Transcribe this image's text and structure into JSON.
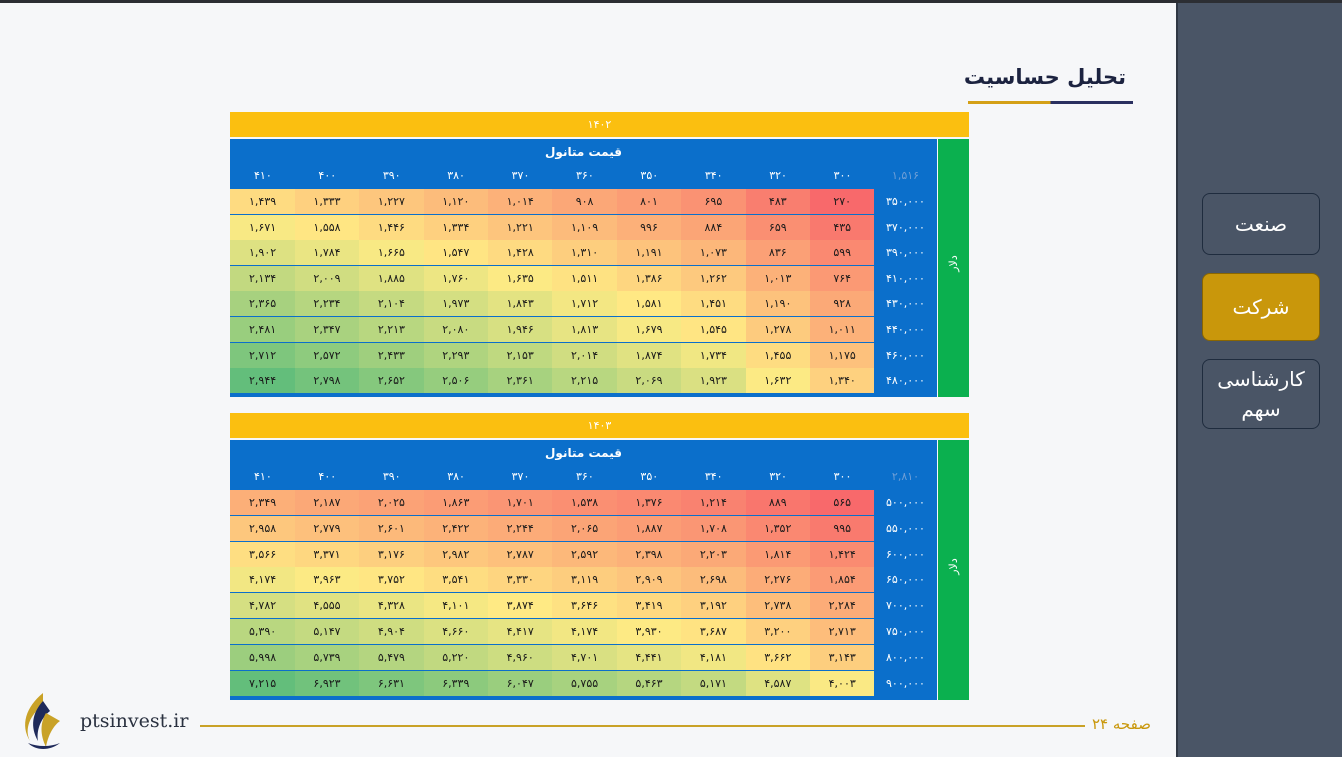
{
  "page": {
    "title": "تحلیل حساسیت",
    "footer_page": "صفحه ۲۴",
    "website": "ptsinvest.ir"
  },
  "sidebar": {
    "items": [
      {
        "label": "صنعت",
        "active": false
      },
      {
        "label": "شرکت",
        "active": true
      },
      {
        "label": "کارشناسی سهم",
        "active": false
      }
    ]
  },
  "colors": {
    "year_bar": "#fbbf10",
    "header_blue": "#0b6fcb",
    "side_green": "#0bb04f",
    "active_button": "#c9970b",
    "heat_low": "#f8696b",
    "heat_mid": "#ffeb84",
    "heat_high": "#63be7b"
  },
  "tables": [
    {
      "year": "۱۴۰۲",
      "col_title": "قیمت متانول",
      "row_title": "دلار",
      "corner": "۱,۵۱۶",
      "columns": [
        "۳۰۰",
        "۳۲۰",
        "۳۴۰",
        "۳۵۰",
        "۳۶۰",
        "۳۷۰",
        "۳۸۰",
        "۳۹۰",
        "۴۰۰",
        "۴۱۰"
      ],
      "rows": [
        {
          "label": "۳۵۰,۰۰۰",
          "values": [
            "۲۷۰",
            "۴۸۳",
            "۶۹۵",
            "۸۰۱",
            "۹۰۸",
            "۱,۰۱۴",
            "۱,۱۲۰",
            "۱,۲۲۷",
            "۱,۳۳۳",
            "۱,۴۳۹"
          ]
        },
        {
          "label": "۳۷۰,۰۰۰",
          "values": [
            "۴۳۵",
            "۶۵۹",
            "۸۸۴",
            "۹۹۶",
            "۱,۱۰۹",
            "۱,۲۲۱",
            "۱,۳۳۴",
            "۱,۴۴۶",
            "۱,۵۵۸",
            "۱,۶۷۱"
          ]
        },
        {
          "label": "۳۹۰,۰۰۰",
          "values": [
            "۵۹۹",
            "۸۳۶",
            "۱,۰۷۳",
            "۱,۱۹۱",
            "۱,۳۱۰",
            "۱,۴۲۸",
            "۱,۵۴۷",
            "۱,۶۶۵",
            "۱,۷۸۴",
            "۱,۹۰۲"
          ]
        },
        {
          "label": "۴۱۰,۰۰۰",
          "values": [
            "۷۶۴",
            "۱,۰۱۳",
            "۱,۲۶۲",
            "۱,۳۸۶",
            "۱,۵۱۱",
            "۱,۶۳۵",
            "۱,۷۶۰",
            "۱,۸۸۵",
            "۲,۰۰۹",
            "۲,۱۳۴"
          ]
        },
        {
          "label": "۴۳۰,۰۰۰",
          "values": [
            "۹۲۸",
            "۱,۱۹۰",
            "۱,۴۵۱",
            "۱,۵۸۱",
            "۱,۷۱۲",
            "۱,۸۴۳",
            "۱,۹۷۳",
            "۲,۱۰۴",
            "۲,۲۳۴",
            "۲,۳۶۵"
          ]
        },
        {
          "label": "۴۴۰,۰۰۰",
          "values": [
            "۱,۰۱۱",
            "۱,۲۷۸",
            "۱,۵۴۵",
            "۱,۶۷۹",
            "۱,۸۱۳",
            "۱,۹۴۶",
            "۲,۰۸۰",
            "۲,۲۱۳",
            "۲,۳۴۷",
            "۲,۴۸۱"
          ]
        },
        {
          "label": "۴۶۰,۰۰۰",
          "values": [
            "۱,۱۷۵",
            "۱,۴۵۵",
            "۱,۷۳۴",
            "۱,۸۷۴",
            "۲,۰۱۴",
            "۲,۱۵۳",
            "۲,۲۹۳",
            "۲,۴۳۳",
            "۲,۵۷۲",
            "۲,۷۱۲"
          ]
        },
        {
          "label": "۴۸۰,۰۰۰",
          "values": [
            "۱,۳۴۰",
            "۱,۶۳۲",
            "۱,۹۲۳",
            "۲,۰۶۹",
            "۲,۲۱۵",
            "۲,۳۶۱",
            "۲,۵۰۶",
            "۲,۶۵۲",
            "۲,۷۹۸",
            "۲,۹۴۴"
          ]
        }
      ]
    },
    {
      "year": "۱۴۰۳",
      "col_title": "قیمت متانول",
      "row_title": "دلار",
      "corner": "۲,۸۱۰",
      "columns": [
        "۳۰۰",
        "۳۲۰",
        "۳۴۰",
        "۳۵۰",
        "۳۶۰",
        "۳۷۰",
        "۳۸۰",
        "۳۹۰",
        "۴۰۰",
        "۴۱۰"
      ],
      "rows": [
        {
          "label": "۵۰۰,۰۰۰",
          "values": [
            "۵۶۵",
            "۸۸۹",
            "۱,۲۱۴",
            "۱,۳۷۶",
            "۱,۵۳۸",
            "۱,۷۰۱",
            "۱,۸۶۳",
            "۲,۰۲۵",
            "۲,۱۸۷",
            "۲,۳۴۹"
          ]
        },
        {
          "label": "۵۵۰,۰۰۰",
          "values": [
            "۹۹۵",
            "۱,۳۵۲",
            "۱,۷۰۸",
            "۱,۸۸۷",
            "۲,۰۶۵",
            "۲,۲۴۴",
            "۲,۴۲۲",
            "۲,۶۰۱",
            "۲,۷۷۹",
            "۲,۹۵۸"
          ]
        },
        {
          "label": "۶۰۰,۰۰۰",
          "values": [
            "۱,۴۲۴",
            "۱,۸۱۴",
            "۲,۲۰۳",
            "۲,۳۹۸",
            "۲,۵۹۲",
            "۲,۷۸۷",
            "۲,۹۸۲",
            "۳,۱۷۶",
            "۳,۳۷۱",
            "۳,۵۶۶"
          ]
        },
        {
          "label": "۶۵۰,۰۰۰",
          "values": [
            "۱,۸۵۴",
            "۲,۲۷۶",
            "۲,۶۹۸",
            "۲,۹۰۹",
            "۳,۱۱۹",
            "۳,۳۳۰",
            "۳,۵۴۱",
            "۳,۷۵۲",
            "۳,۹۶۳",
            "۴,۱۷۴"
          ]
        },
        {
          "label": "۷۰۰,۰۰۰",
          "values": [
            "۲,۲۸۴",
            "۲,۷۳۸",
            "۳,۱۹۲",
            "۳,۴۱۹",
            "۳,۶۴۶",
            "۳,۸۷۴",
            "۴,۱۰۱",
            "۴,۳۲۸",
            "۴,۵۵۵",
            "۴,۷۸۲"
          ]
        },
        {
          "label": "۷۵۰,۰۰۰",
          "values": [
            "۲,۷۱۳",
            "۳,۲۰۰",
            "۳,۶۸۷",
            "۳,۹۳۰",
            "۴,۱۷۴",
            "۴,۴۱۷",
            "۴,۶۶۰",
            "۴,۹۰۴",
            "۵,۱۴۷",
            "۵,۳۹۰"
          ]
        },
        {
          "label": "۸۰۰,۰۰۰",
          "values": [
            "۳,۱۴۳",
            "۳,۶۶۲",
            "۴,۱۸۱",
            "۴,۴۴۱",
            "۴,۷۰۱",
            "۴,۹۶۰",
            "۵,۲۲۰",
            "۵,۴۷۹",
            "۵,۷۳۹",
            "۵,۹۹۸"
          ]
        },
        {
          "label": "۹۰۰,۰۰۰",
          "values": [
            "۴,۰۰۳",
            "۴,۵۸۷",
            "۵,۱۷۱",
            "۵,۴۶۳",
            "۵,۷۵۵",
            "۶,۰۴۷",
            "۶,۳۳۹",
            "۶,۶۳۱",
            "۶,۹۲۳",
            "۷,۲۱۵"
          ]
        }
      ]
    }
  ]
}
